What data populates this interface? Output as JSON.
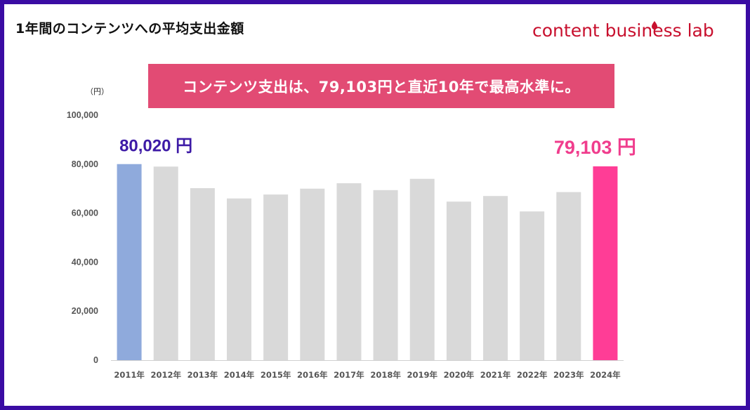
{
  "page": {
    "title": "1年間のコンテンツへの平均支出金額",
    "logo_text": "content business lab",
    "headline": "コンテンツ支出は、79,103円と直近10年で最高水準に。",
    "unit_label": "（円）"
  },
  "colors": {
    "frame": "#3a0ca3",
    "banner": "#e24b74",
    "bar_default": "#d9d9d9",
    "bar_first": "#8faadc",
    "bar_last": "#ff3d96",
    "logo": "#c8102e"
  },
  "chart_data": {
    "type": "bar",
    "categories": [
      "2011年",
      "2012年",
      "2013年",
      "2014年",
      "2015年",
      "2016年",
      "2017年",
      "2018年",
      "2019年",
      "2020年",
      "2021年",
      "2022年",
      "2023年",
      "2024年"
    ],
    "values": [
      80020,
      79000,
      70200,
      66000,
      67600,
      70000,
      72200,
      69400,
      74000,
      64700,
      67000,
      60700,
      68600,
      79103
    ],
    "ylim": [
      0,
      100000
    ],
    "yticks": [
      0,
      20000,
      40000,
      60000,
      80000,
      100000
    ],
    "ytick_labels": [
      "0",
      "20,000",
      "40,000",
      "60,000",
      "80,000",
      "100,000"
    ],
    "annotations": [
      {
        "category": "2011年",
        "text": "80,020 円"
      },
      {
        "category": "2024年",
        "text": "79,103 円"
      }
    ],
    "grid": false,
    "legend": "none"
  }
}
